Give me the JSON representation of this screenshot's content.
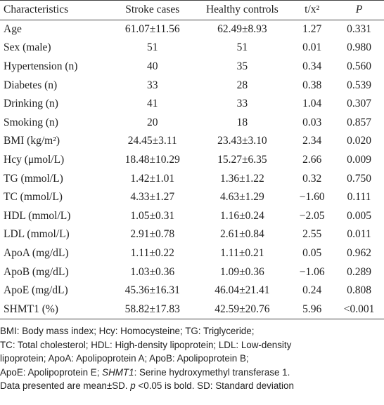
{
  "table": {
    "header": [
      {
        "text": "Characteristics",
        "italic": false
      },
      {
        "text": "Stroke cases",
        "italic": false
      },
      {
        "text": "Healthy controls",
        "italic": false
      },
      {
        "text": "t/x²",
        "italic": false
      },
      {
        "text": "P",
        "italic": true
      }
    ],
    "rows": [
      [
        "Age",
        "61.07±11.56",
        "62.49±8.93",
        "1.27",
        "0.331"
      ],
      [
        "Sex (male)",
        "51",
        "51",
        "0.01",
        "0.980"
      ],
      [
        "Hypertension (n)",
        "40",
        "35",
        "0.34",
        "0.560"
      ],
      [
        "Diabetes (n)",
        "33",
        "28",
        "0.38",
        "0.539"
      ],
      [
        "Drinking (n)",
        "41",
        "33",
        "1.04",
        "0.307"
      ],
      [
        "Smoking (n)",
        "20",
        "18",
        "0.03",
        "0.857"
      ],
      [
        "BMI (kg/m²)",
        "24.45±3.11",
        "23.43±3.10",
        "2.34",
        "0.020"
      ],
      [
        "Hcy (μmol/L)",
        "18.48±10.29",
        "15.27±6.35",
        "2.66",
        "0.009"
      ],
      [
        "TG (mmol/L)",
        "1.42±1.01",
        "1.36±1.22",
        "0.32",
        "0.750"
      ],
      [
        "TC (mmol/L)",
        "4.33±1.27",
        "4.63±1.29",
        "−1.60",
        "0.111"
      ],
      [
        "HDL (mmol/L)",
        "1.05±0.31",
        "1.16±0.24",
        "−2.05",
        "0.005"
      ],
      [
        "LDL (mmol/L)",
        "2.91±0.78",
        "2.61±0.84",
        "2.55",
        "0.011"
      ],
      [
        "ApoA (mg/dL)",
        "1.11±0.22",
        "1.11±0.21",
        "0.05",
        "0.962"
      ],
      [
        "ApoB (mg/dL)",
        "1.03±0.36",
        "1.09±0.36",
        "−1.06",
        "0.289"
      ],
      [
        "ApoE (mg/dL)",
        "45.36±16.31",
        "46.04±21.41",
        "0.24",
        "0.808"
      ],
      [
        "SHMT1 (%)",
        "58.82±17.83",
        "42.59±20.76",
        "5.96",
        "<0.001"
      ]
    ]
  },
  "footnote": [
    [
      {
        "text": "BMI: Body mass index; Hcy: Homocysteine; TG: Triglyceride;",
        "italic": false
      }
    ],
    [
      {
        "text": "TC: Total cholesterol; HDL: High-density lipoprotein; LDL: Low-density",
        "italic": false
      }
    ],
    [
      {
        "text": "lipoprotein; ApoA: Apolipoprotein A; ApoB: Apolipoprotein B;",
        "italic": false
      }
    ],
    [
      {
        "text": "ApoE: Apolipoprotein E; ",
        "italic": false
      },
      {
        "text": "SHMT1",
        "italic": true
      },
      {
        "text": ": Serine hydroxymethyl transferase 1.",
        "italic": false
      }
    ],
    [
      {
        "text": "Data presented are mean±SD. ",
        "italic": false
      },
      {
        "text": "p",
        "italic": true
      },
      {
        "text": " <0.05 is bold. SD: Standard deviation",
        "italic": false
      }
    ]
  ]
}
